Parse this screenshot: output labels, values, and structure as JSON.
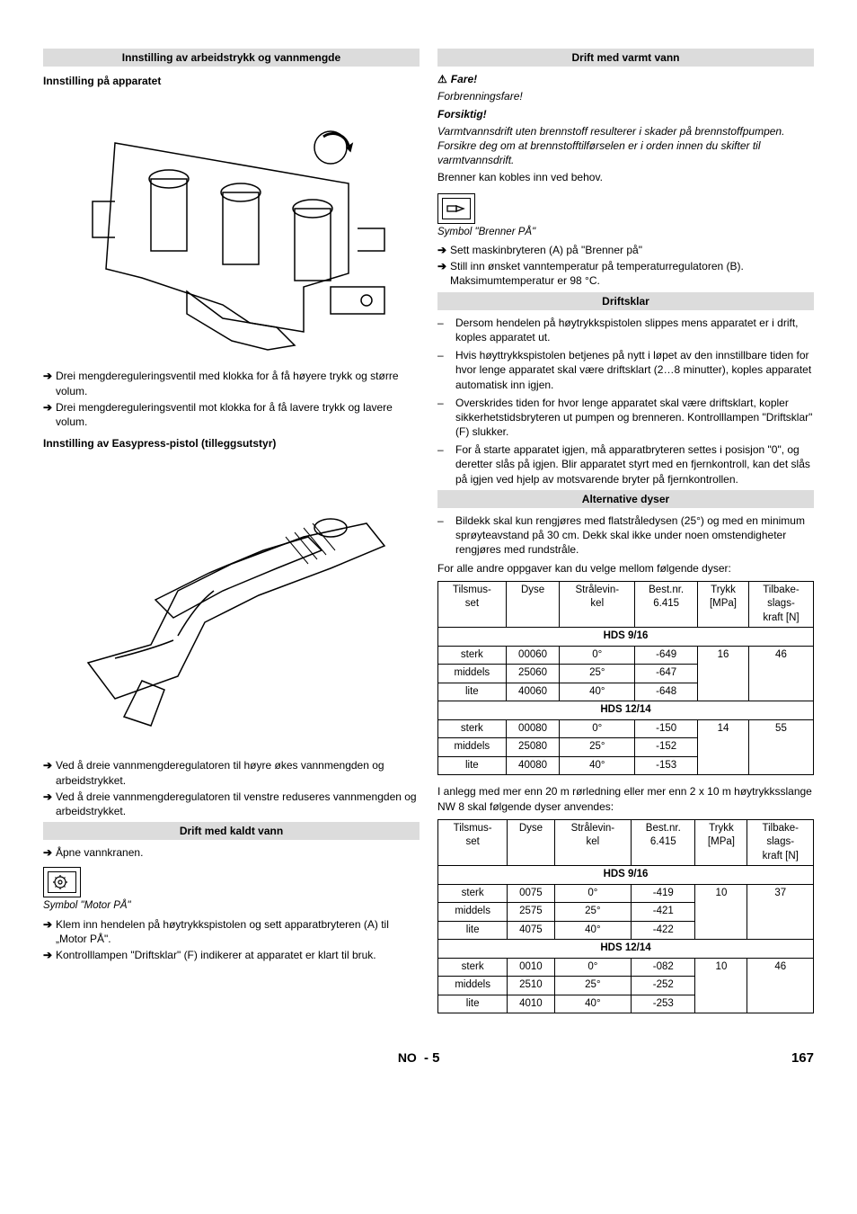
{
  "left": {
    "h1": "Innstilling av arbeidstrykk og vannmengde",
    "sub1": "Innstilling på apparatet",
    "bullets1": [
      "Drei mengdereguleringsventil med klokka for å få høyere trykk og større volum.",
      "Drei mengdereguleringsventil mot klokka for å få lavere trykk og lavere volum."
    ],
    "sub2": "Innstilling av Easypress-pistol (tilleggsutstyr)",
    "bullets2": [
      "Ved å dreie vannmengderegulatoren til høyre økes vannmengden og arbeidstrykket.",
      "Ved å dreie vannmengderegulatoren til venstre reduseres vannmengden og arbeidstrykket."
    ],
    "h2": "Drift med kaldt vann",
    "cold_bullet": "Åpne vannkranen.",
    "symbol_caption": "Symbol \"Motor PÅ\"",
    "cold_bullets2": [
      "Klem inn hendelen på høytrykkspistolen og sett apparatbryteren (A) til „Motor PÅ\".",
      "Kontrolllampen \"Driftsklar\" (F) indikerer at apparatet er klart til bruk."
    ]
  },
  "right": {
    "h1": "Drift med varmt vann",
    "danger": "Fare!",
    "danger_text": "Forbrenningsfare!",
    "caution": "Forsiktig!",
    "caution_text": "Varmtvannsdrift uten brennstoff resulterer i skader på brennstoffpumpen. Forsikre deg om at brennstofftilførselen er i orden innen du skifter til varmtvannsdrift.",
    "brenner_line": "Brenner kan kobles inn ved behov.",
    "symbol_caption": "Symbol \"Brenner PÅ\"",
    "hot_bullets": [
      "Sett maskinbryteren (A) på \"Brenner på\"",
      "Still inn ønsket vanntemperatur på temperaturregulatoren (B). Maksimumtemperatur er 98 °C."
    ],
    "h2": "Driftsklar",
    "drift_bullets": [
      "Dersom hendelen på høytrykkspistolen slippes mens apparatet er i drift, koples apparatet ut.",
      "Hvis høyttrykkspistolen betjenes på nytt i løpet av den innstillbare tiden for hvor lenge apparatet skal være driftsklart (2…8 minutter), koples apparatet automatisk inn igjen.",
      "Overskrides tiden for hvor lenge apparatet skal være driftsklart, kopler sikkerhetstidsbryteren ut pumpen og brenneren. Kontrolllampen \"Driftsklar\" (F) slukker.",
      "For å starte apparatet igjen, må apparatbryteren settes i posisjon \"0\", og deretter slås på igjen. Blir apparatet styrt med en fjernkontroll, kan det slås på igjen ved hjelp av motsvarende bryter på fjernkontrollen."
    ],
    "h3": "Alternative dyser",
    "alt_bullet": "Bildekk skal kun rengjøres med flatstråledysen (25°) og med en minimum sprøyteavstand på 30 cm. Dekk skal ikke under noen omstendigheter rengjøres med rundstråle.",
    "alt_text": "For alle andre oppgaver kan du velge mellom følgende dyser:",
    "tbl_headers": [
      "Tilsmusset",
      "Dyse",
      "Strålevinkel",
      "Best.nr. 6.415",
      "Trykk [MPa]",
      "Tilbakeslagskraft [N]"
    ],
    "tbl1": {
      "group1": "HDS 9/16",
      "rows1": [
        [
          "sterk",
          "00060",
          "0°",
          "-649",
          "16",
          "46"
        ],
        [
          "middels",
          "25060",
          "25°",
          "-647",
          "",
          ""
        ],
        [
          "lite",
          "40060",
          "40°",
          "-648",
          "",
          ""
        ]
      ],
      "group2": "HDS 12/14",
      "rows2": [
        [
          "sterk",
          "00080",
          "0°",
          "-150",
          "14",
          "55"
        ],
        [
          "middels",
          "25080",
          "25°",
          "-152",
          "",
          ""
        ],
        [
          "lite",
          "40080",
          "40°",
          "-153",
          "",
          ""
        ]
      ]
    },
    "between_tables": "I anlegg med mer enn 20 m rørledning eller mer enn 2 x 10 m høytrykksslange NW 8 skal følgende dyser anvendes:",
    "tbl2": {
      "group1": "HDS 9/16",
      "rows1": [
        [
          "sterk",
          "0075",
          "0°",
          "-419",
          "10",
          "37"
        ],
        [
          "middels",
          "2575",
          "25°",
          "-421",
          "",
          ""
        ],
        [
          "lite",
          "4075",
          "40°",
          "-422",
          "",
          ""
        ]
      ],
      "group2": "HDS 12/14",
      "rows2": [
        [
          "sterk",
          "0010",
          "0°",
          "-082",
          "10",
          "46"
        ],
        [
          "middels",
          "2510",
          "25°",
          "-252",
          "",
          ""
        ],
        [
          "lite",
          "4010",
          "40°",
          "-253",
          "",
          ""
        ]
      ]
    }
  },
  "footer": {
    "lang": "NO",
    "page_in": "5",
    "page_out": "167"
  }
}
